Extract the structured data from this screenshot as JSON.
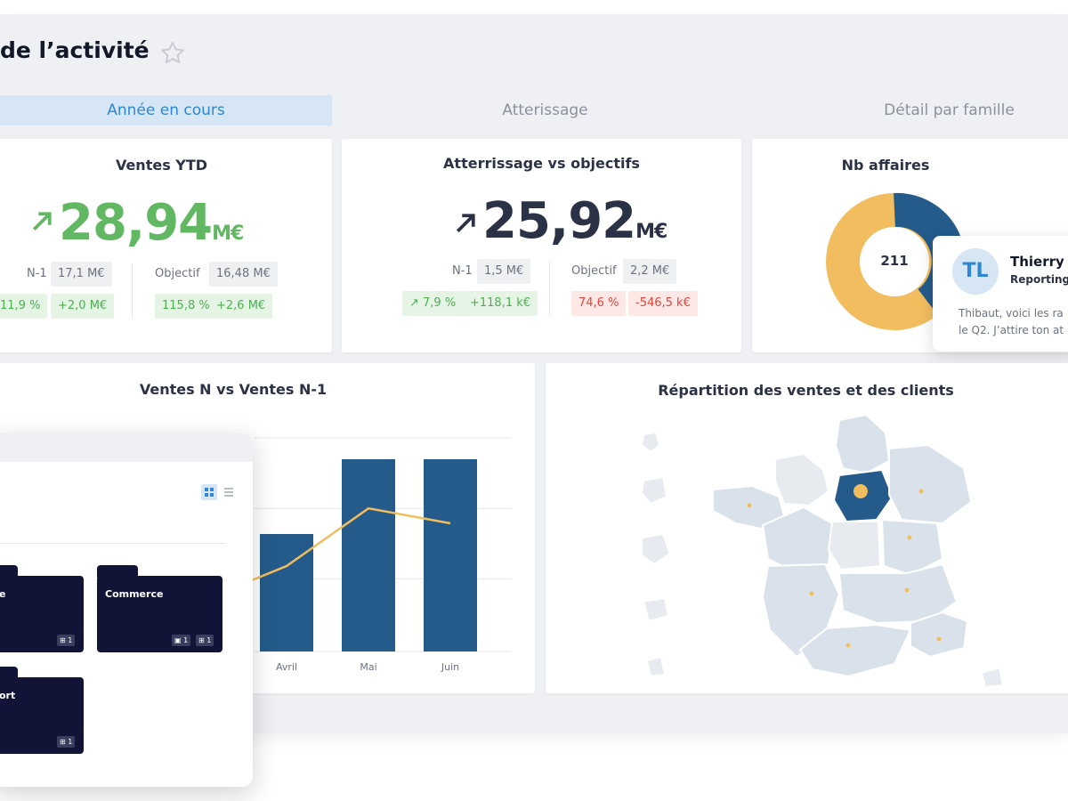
{
  "page": {
    "title": "de l’activité"
  },
  "tabs": [
    {
      "label": "Année en cours",
      "active": true
    },
    {
      "label": "Atterissage",
      "active": false
    },
    {
      "label": "Détail par famille",
      "active": false
    }
  ],
  "kpi_ventes": {
    "title": "Ventes YTD",
    "value": "28,94",
    "unit": "M€",
    "trend": "up",
    "color": "#62b862",
    "n1_label": "N-1",
    "n1_value": "17,1 M€",
    "n1_pct": "11,9 %",
    "n1_delta": "+2,0 M€",
    "obj_label": "Objectif",
    "obj_value": "16,48 M€",
    "obj_pct": "115,8 %",
    "obj_delta": "+2,6 M€"
  },
  "kpi_atterrissage": {
    "title": "Atterrissage vs objectifs",
    "value": "25,92",
    "unit": "M€",
    "trend": "up",
    "color": "#2b3245",
    "n1_label": "N-1",
    "n1_value": "1,5 M€",
    "n1_pct": "7,9 %",
    "n1_delta": "+118,1 k€",
    "obj_label": "Objectif",
    "obj_value": "2,2 M€",
    "obj_pct": "74,6 %",
    "obj_delta": "-546,5 k€"
  },
  "kpi_affaires": {
    "title": "Nb affaires",
    "center_value": "211",
    "colors": [
      "#f2bd5e",
      "#245b8a"
    ]
  },
  "message": {
    "initials": "TL",
    "name": "Thierry v",
    "subtitle": "Reporting",
    "line1": "Thibaut, voici les ra",
    "line2": "le Q2. J’attire ton at"
  },
  "chart_section": {
    "title": "Ventes N vs Ventes N-1"
  },
  "chart_data": {
    "type": "bar",
    "categories": [
      "Avril",
      "Mai",
      "Juin"
    ],
    "series": [
      {
        "type": "bar",
        "values": [
          55,
          90,
          90
        ],
        "color": "#245b8a"
      },
      {
        "type": "line",
        "values": [
          40,
          67,
          60
        ],
        "color": "#f2bd5e"
      }
    ],
    "ylim": [
      0,
      100
    ],
    "grid": true
  },
  "map_section": {
    "title": "Répartition des ventes et des clients"
  },
  "folders": [
    {
      "label": "e",
      "badges": [
        "1"
      ]
    },
    {
      "label": "Commerce",
      "badges": [
        "1",
        "1"
      ]
    },
    {
      "label": "ort",
      "badges": [
        "1"
      ]
    }
  ],
  "colors": {
    "accent": "#2e86d6",
    "navy": "#245b8a",
    "orange": "#f2bd5e",
    "positive": "#4caf50",
    "negative": "#e0463b"
  }
}
